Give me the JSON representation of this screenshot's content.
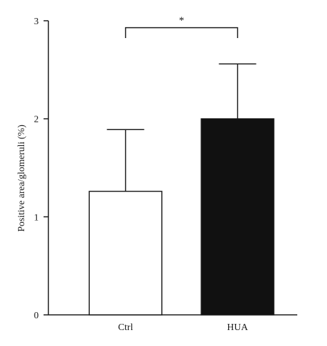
{
  "chart_data": {
    "type": "bar",
    "categories": [
      "Ctrl",
      "HUA"
    ],
    "values": [
      1.26,
      2.0
    ],
    "errors": [
      0.63,
      0.56
    ],
    "bar_colors": [
      "#ffffff",
      "#111111"
    ],
    "title": "",
    "xlabel": "",
    "ylabel": "Positive area/glomeruli (%)",
    "ylim": [
      0,
      3
    ],
    "yticks": [
      0,
      1,
      2,
      3
    ],
    "grid": false,
    "significance": {
      "between": [
        "Ctrl",
        "HUA"
      ],
      "label": "*"
    }
  }
}
